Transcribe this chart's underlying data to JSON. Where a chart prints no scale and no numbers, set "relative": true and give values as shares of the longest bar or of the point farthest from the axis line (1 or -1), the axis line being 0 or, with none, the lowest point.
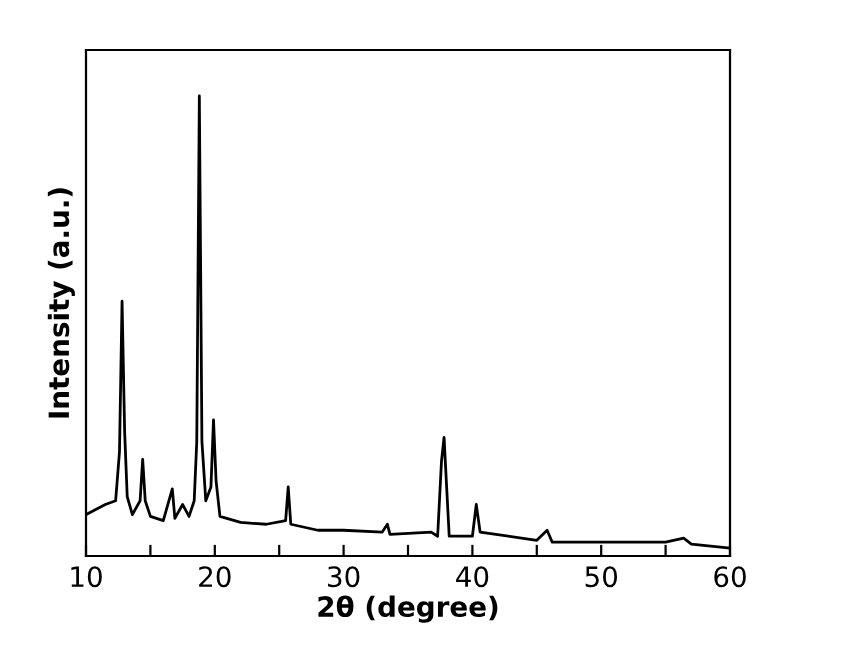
{
  "chart_data": {
    "type": "line",
    "relative": true,
    "xlabel": "2θ (degree)",
    "ylabel": "Intensity (a.u.)",
    "xlim": [
      10,
      60
    ],
    "xticks": [
      10,
      {
        "value": 15,
        "label": null
      },
      20,
      {
        "value": 25,
        "label": null
      },
      30,
      {
        "value": 35,
        "label": null
      },
      40,
      {
        "value": 45,
        "label": null
      },
      50,
      {
        "value": 55,
        "label": null
      },
      60
    ],
    "tick_labels": "x",
    "grid": false,
    "legend": false,
    "marker": "none",
    "line_style": "solid",
    "series": [
      {
        "color": "#000000",
        "x": [
          10,
          11.5,
          12.3,
          12.6,
          12.8,
          13.0,
          13.2,
          13.6,
          14.2,
          14.4,
          14.6,
          15,
          16,
          16.7,
          16.9,
          17.5,
          18,
          18.4,
          18.6,
          18.8,
          19.0,
          19.3,
          19.7,
          19.9,
          20.1,
          20.4,
          22,
          24,
          25.5,
          25.7,
          25.9,
          28,
          30,
          33,
          33.4,
          33.6,
          36.8,
          37.3,
          37.6,
          37.8,
          38.0,
          38.2,
          40.0,
          40.3,
          40.6,
          45,
          45.8,
          46.2,
          50,
          55,
          56.4,
          57,
          60
        ],
        "values": [
          0.09,
          0.112,
          0.12,
          0.227,
          0.554,
          0.27,
          0.129,
          0.09,
          0.12,
          0.21,
          0.12,
          0.086,
          0.077,
          0.146,
          0.082,
          0.112,
          0.086,
          0.12,
          0.249,
          1.0,
          0.249,
          0.12,
          0.15,
          0.296,
          0.163,
          0.086,
          0.073,
          0.069,
          0.077,
          0.15,
          0.069,
          0.056,
          0.056,
          0.052,
          0.069,
          0.047,
          0.052,
          0.043,
          0.206,
          0.258,
          0.15,
          0.043,
          0.043,
          0.112,
          0.052,
          0.034,
          0.056,
          0.03,
          0.03,
          0.03,
          0.039,
          0.026,
          0.017
        ]
      }
    ]
  }
}
